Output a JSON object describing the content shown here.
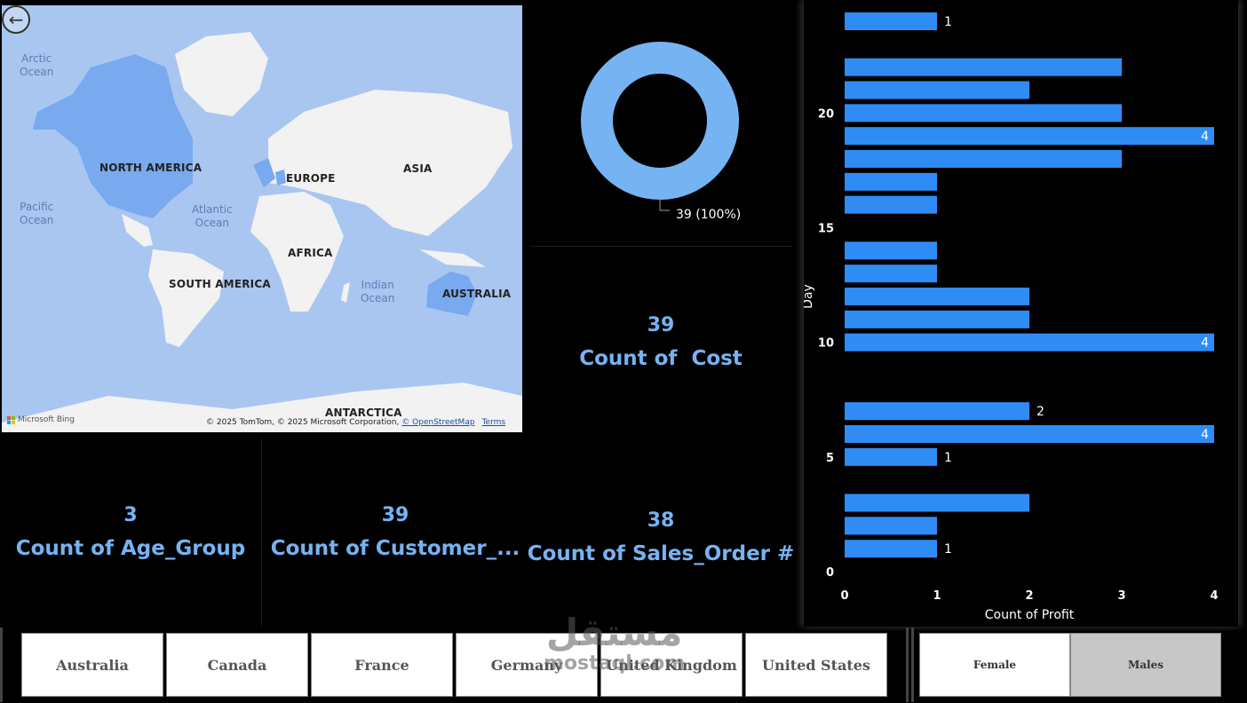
{
  "map": {
    "back_icon": "back-arrow-icon",
    "continents": [
      "NORTH AMERICA",
      "EUROPE",
      "ASIA",
      "AFRICA",
      "SOUTH AMERICA",
      "AUSTRALIA",
      "ANTARCTICA"
    ],
    "oceans": [
      "Arctic\nOcean",
      "Pacific\nOcean",
      "Atlantic\nOcean",
      "Indian\nOcean"
    ],
    "brand": "Microsoft Bing",
    "attribution": "© 2025 TomTom, © 2025 Microsoft Corporation,",
    "osm_link": "© OpenStreetMap",
    "terms_link": "Terms",
    "land_color": "#f2f2f2",
    "highlight_color": "#79a9ef",
    "water_color": "#a9c6f0"
  },
  "donut": {
    "label": "39 (100%)",
    "value": 39,
    "percent": 100,
    "color": "#76b3f2"
  },
  "cards": {
    "cost": {
      "value": "39",
      "caption": "Count of  Cost"
    },
    "age_group": {
      "value": "3",
      "caption": "Count of Age_Group"
    },
    "customer": {
      "value": "39",
      "caption": "Count of Customer_..."
    },
    "sales_order": {
      "value": "38",
      "caption": "Count of Sales_Order #"
    }
  },
  "chart_data": {
    "type": "bar",
    "orientation": "horizontal",
    "xlabel": "Count of Profit",
    "ylabel": "Day",
    "xlim": [
      0,
      4
    ],
    "x_ticks": [
      0,
      1,
      2,
      3,
      4
    ],
    "y_ticks": [
      0,
      5,
      10,
      15,
      20
    ],
    "ylim": [
      0,
      24
    ],
    "bar_color": "#2f8cf5",
    "bars": [
      {
        "day": 1,
        "value": 1,
        "label": "1"
      },
      {
        "day": 2,
        "value": 1,
        "label": ""
      },
      {
        "day": 3,
        "value": 2,
        "label": ""
      },
      {
        "day": 5,
        "value": 1,
        "label": "1"
      },
      {
        "day": 6,
        "value": 4,
        "label": "4"
      },
      {
        "day": 7,
        "value": 2,
        "label": "2"
      },
      {
        "day": 10,
        "value": 4,
        "label": "4"
      },
      {
        "day": 11,
        "value": 2,
        "label": ""
      },
      {
        "day": 12,
        "value": 2,
        "label": ""
      },
      {
        "day": 13,
        "value": 1,
        "label": ""
      },
      {
        "day": 14,
        "value": 1,
        "label": ""
      },
      {
        "day": 16,
        "value": 1,
        "label": ""
      },
      {
        "day": 17,
        "value": 1,
        "label": ""
      },
      {
        "day": 18,
        "value": 3,
        "label": ""
      },
      {
        "day": 19,
        "value": 4,
        "label": "4"
      },
      {
        "day": 20,
        "value": 3,
        "label": ""
      },
      {
        "day": 21,
        "value": 2,
        "label": ""
      },
      {
        "day": 22,
        "value": 3,
        "label": ""
      },
      {
        "day": 24,
        "value": 1,
        "label": "1"
      }
    ]
  },
  "slicers": {
    "countries": [
      "Australia",
      "Canada",
      "France",
      "Germany",
      "United Kingdom",
      "United States"
    ],
    "genders": [
      {
        "label": "Female",
        "selected": false
      },
      {
        "label": "Males",
        "selected": true
      }
    ]
  },
  "watermark": {
    "arabic": "مستقل",
    "latin": "mostaql.com"
  }
}
